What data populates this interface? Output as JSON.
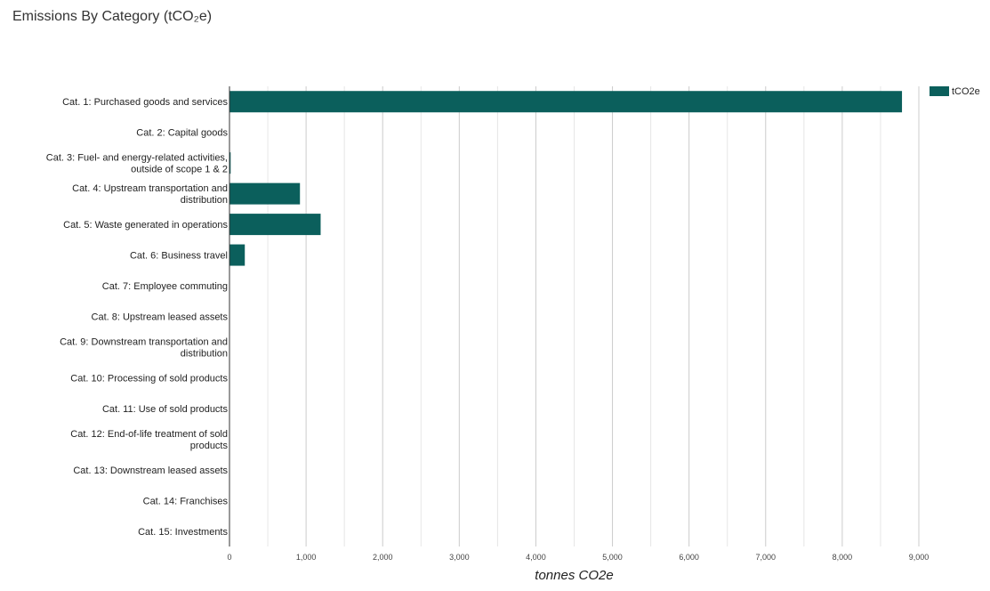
{
  "chart_data": {
    "type": "bar",
    "orientation": "horizontal",
    "title": "Emissions By Category (tCO₂e)",
    "xlabel": "tonnes CO2e",
    "ylabel": "",
    "xlim": [
      0,
      9000
    ],
    "xticks": [
      "0",
      "1,000",
      "2,000",
      "3,000",
      "4,000",
      "5,000",
      "6,000",
      "7,000",
      "8,000",
      "9,000"
    ],
    "grid": true,
    "legend_position": "top-right",
    "series": [
      {
        "name": "tCO2e",
        "color": "#0b5f5c",
        "values": [
          8780,
          0,
          15,
          920,
          1190,
          200,
          0,
          0,
          0,
          0,
          0,
          0,
          0,
          0,
          0
        ]
      }
    ],
    "categories": [
      "Cat. 1: Purchased goods and services",
      "Cat. 2: Capital goods",
      "Cat. 3: Fuel- and energy-related activities, outside of scope 1 & 2",
      "Cat. 4: Upstream transportation and distribution",
      "Cat. 5: Waste generated in operations",
      "Cat. 6: Business travel",
      "Cat. 7: Employee commuting",
      "Cat. 8: Upstream leased assets",
      "Cat. 9: Downstream transportation and distribution",
      "Cat. 10: Processing of sold products",
      "Cat. 11: Use of sold products",
      "Cat. 12: End-of-life treatment of sold products",
      "Cat. 13: Downstream leased assets",
      "Cat. 14: Franchises",
      "Cat. 15: Investments"
    ]
  }
}
